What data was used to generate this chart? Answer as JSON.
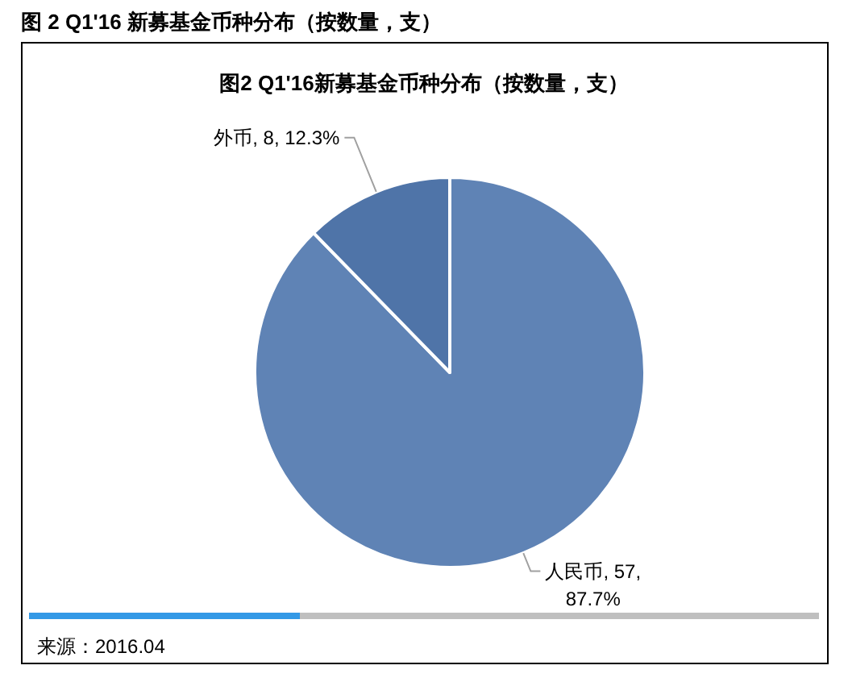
{
  "chart_data": {
    "type": "pie",
    "title": "图 2 Q1'16 新募基金币种分布（按数量，支）",
    "subtitle": "图2 Q1'16新募基金币种分布（按数量，支）",
    "categories": [
      "人民币",
      "外币"
    ],
    "values": [
      57,
      8
    ],
    "colors": [
      "#5f83b5",
      "#4f74a8"
    ],
    "value_labels": [
      "57, 87.7%",
      "8, 12.3%"
    ],
    "annotations": [
      "来源：2016.04"
    ]
  }
}
